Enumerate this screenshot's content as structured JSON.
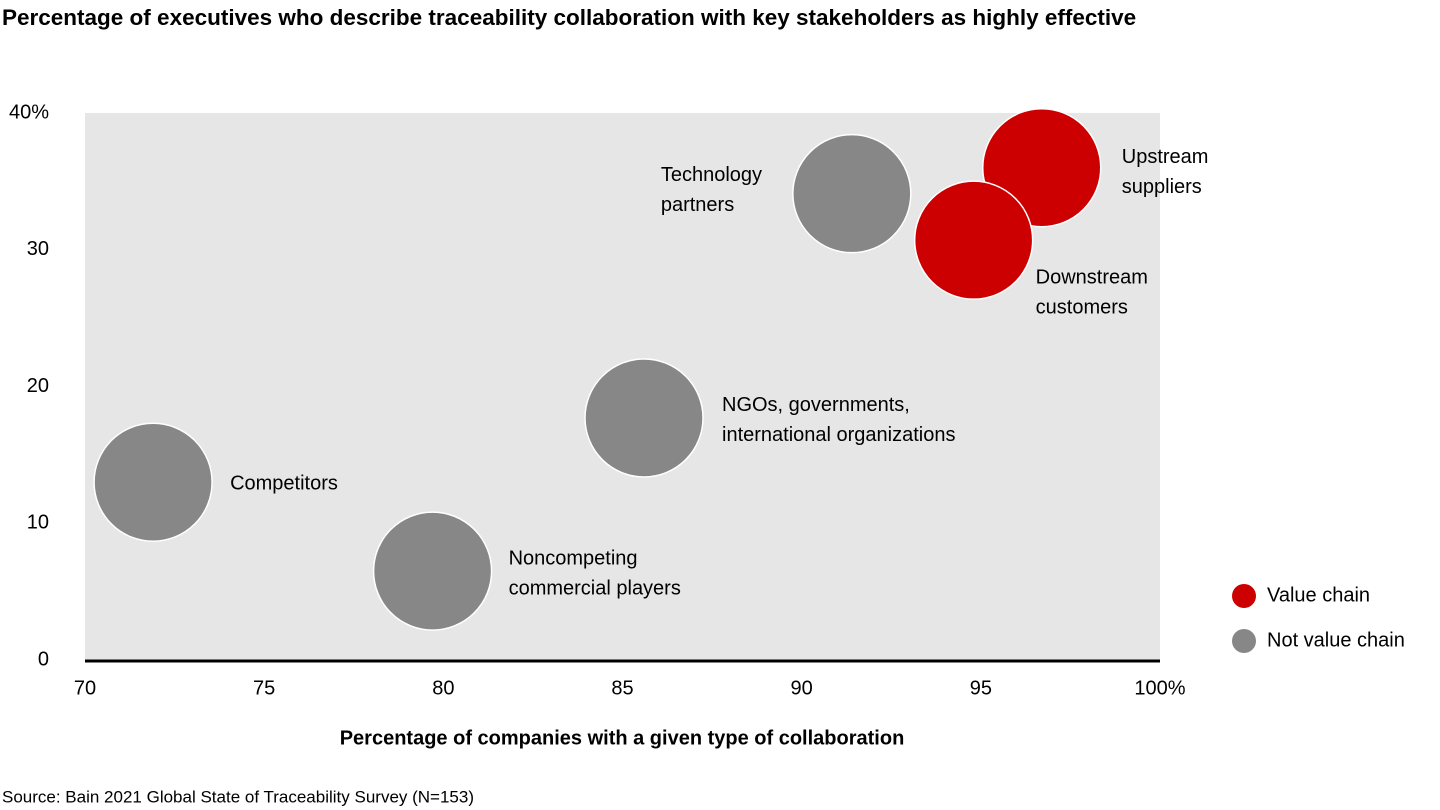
{
  "chart_data": {
    "type": "bubble",
    "title": "Percentage of executives who describe traceability collaboration with key stakeholders as highly effective",
    "x_label": "Percentage of companies with a given type of collaboration",
    "source": "Source: Bain 2021 Global State of Traceability Survey (N=153)",
    "xlim": [
      70,
      100
    ],
    "xticks": [
      70,
      75,
      80,
      85,
      90,
      95,
      {
        "value": 100,
        "label": "100%"
      }
    ],
    "ylim": [
      0,
      40
    ],
    "yticks": [
      0,
      10,
      20,
      30,
      {
        "value": 40,
        "label": "40%"
      }
    ],
    "grid": false,
    "series": [
      {
        "name": "Value chain",
        "color": "#cc0000",
        "x": [
          96.7,
          94.8
        ],
        "values": [
          36,
          30.7
        ],
        "labels": [
          [
            "Upstream",
            "suppliers"
          ],
          [
            "Downstream",
            "customers"
          ]
        ]
      },
      {
        "name": "Not value chain",
        "color": "#878787",
        "x": [
          91.4,
          85.6,
          71.9,
          79.7
        ],
        "values": [
          34.1,
          17.7,
          13.0,
          6.5
        ],
        "labels": [
          [
            "Technology",
            "partners"
          ],
          [
            "NGOs, governments,",
            "international organizations"
          ],
          [
            "Competitors"
          ],
          [
            "Noncompeting",
            "commercial players"
          ]
        ]
      }
    ]
  }
}
